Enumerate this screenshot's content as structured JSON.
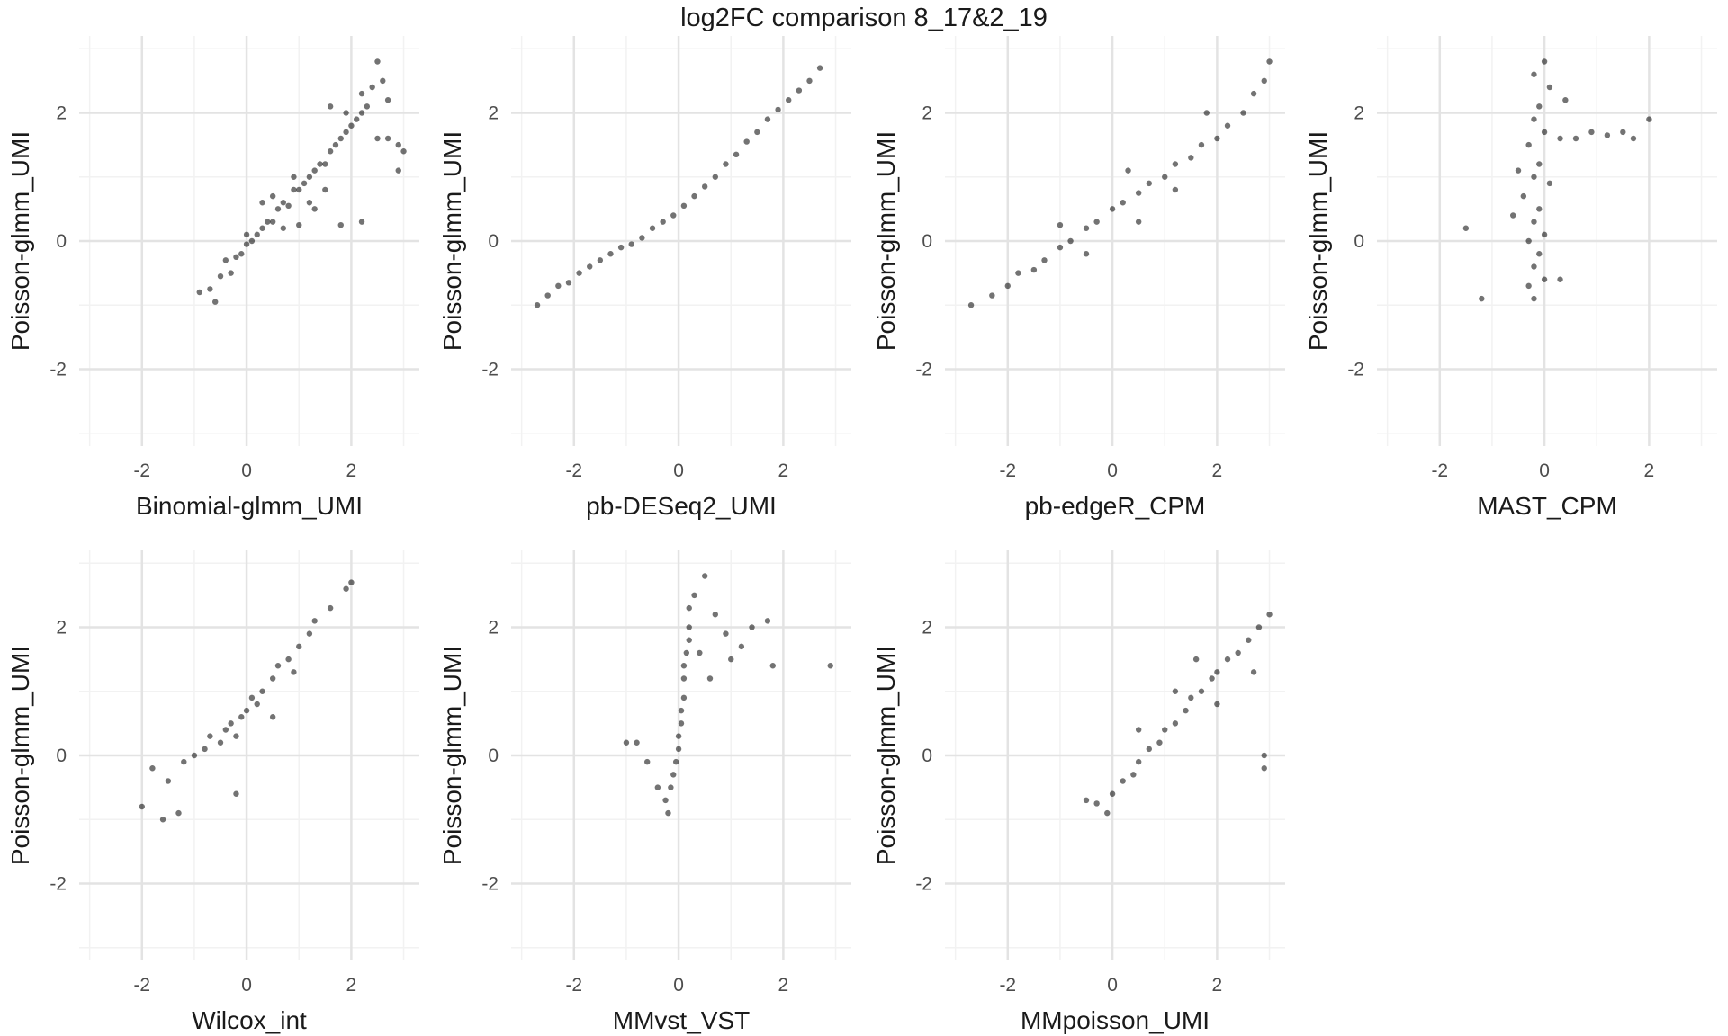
{
  "figure": {
    "title": "log2FC comparison 8_17&2_19"
  },
  "style": {
    "point_color": "#000000",
    "grid_major": "#e3e3e3",
    "grid_minor": "#f2f2f2",
    "background": "#ffffff"
  },
  "chart_data": [
    {
      "type": "scatter",
      "xlabel": "Binomial-glmm_UMI",
      "ylabel": "Poisson-glmm_UMI",
      "xlim": [
        -3.2,
        3.3
      ],
      "ylim": [
        -3.2,
        3.2
      ],
      "xticks": [
        -2,
        0,
        2
      ],
      "yticks": [
        -2,
        0,
        2
      ],
      "grid": true,
      "description": "strong positive correlation, slope ~0.8, tail flattening near y=1.5 for x>2.3",
      "points": [
        [
          -0.9,
          -0.8
        ],
        [
          -0.7,
          -0.75
        ],
        [
          -0.6,
          -0.95
        ],
        [
          -0.5,
          -0.55
        ],
        [
          -0.4,
          -0.3
        ],
        [
          -0.3,
          -0.5
        ],
        [
          -0.2,
          -0.25
        ],
        [
          -0.1,
          -0.2
        ],
        [
          0,
          -0.05
        ],
        [
          0,
          0.1
        ],
        [
          0.1,
          0
        ],
        [
          0.2,
          0.1
        ],
        [
          0.3,
          0.2
        ],
        [
          0.4,
          0.3
        ],
        [
          0.5,
          0.3
        ],
        [
          0.6,
          0.5
        ],
        [
          0.7,
          0.6
        ],
        [
          0.8,
          0.55
        ],
        [
          0.9,
          0.8
        ],
        [
          1,
          0.8
        ],
        [
          1.1,
          0.9
        ],
        [
          1.2,
          1.0
        ],
        [
          1.3,
          1.1
        ],
        [
          1.4,
          1.2
        ],
        [
          1.5,
          1.2
        ],
        [
          1.6,
          1.4
        ],
        [
          1.7,
          1.5
        ],
        [
          1.8,
          1.6
        ],
        [
          1.9,
          1.7
        ],
        [
          2.0,
          1.8
        ],
        [
          2.1,
          1.9
        ],
        [
          2.2,
          2.0
        ],
        [
          2.3,
          2.1
        ],
        [
          2.4,
          2.4
        ],
        [
          2.5,
          2.8
        ],
        [
          2.6,
          2.5
        ],
        [
          2.7,
          2.2
        ],
        [
          2.5,
          1.6
        ],
        [
          2.7,
          1.6
        ],
        [
          2.9,
          1.5
        ],
        [
          3.0,
          1.4
        ],
        [
          2.9,
          1.1
        ],
        [
          2.2,
          0.3
        ],
        [
          1.8,
          0.25
        ],
        [
          1.3,
          0.5
        ],
        [
          1.0,
          0.25
        ],
        [
          0.9,
          1.0
        ],
        [
          0.5,
          0.7
        ],
        [
          0.3,
          0.6
        ],
        [
          1.6,
          2.1
        ],
        [
          1.9,
          2.0
        ],
        [
          2.2,
          2.3
        ],
        [
          0.7,
          0.2
        ],
        [
          1.5,
          0.8
        ],
        [
          1.2,
          0.6
        ]
      ]
    },
    {
      "type": "scatter",
      "xlabel": "pb-DESeq2_UMI",
      "ylabel": "Poisson-glmm_UMI",
      "xlim": [
        -3.2,
        3.3
      ],
      "ylim": [
        -3.2,
        3.2
      ],
      "xticks": [
        -2,
        0,
        2
      ],
      "yticks": [
        -2,
        0,
        2
      ],
      "grid": true,
      "description": "nearly perfect linear relation, slope ~0.85",
      "points": [
        [
          -2.7,
          -1.0
        ],
        [
          -2.5,
          -0.85
        ],
        [
          -2.3,
          -0.7
        ],
        [
          -2.1,
          -0.65
        ],
        [
          -1.9,
          -0.5
        ],
        [
          -1.7,
          -0.4
        ],
        [
          -1.5,
          -0.3
        ],
        [
          -1.3,
          -0.2
        ],
        [
          -1.1,
          -0.1
        ],
        [
          -0.9,
          -0.05
        ],
        [
          -0.7,
          0.05
        ],
        [
          -0.5,
          0.2
        ],
        [
          -0.3,
          0.3
        ],
        [
          -0.1,
          0.4
        ],
        [
          0.1,
          0.55
        ],
        [
          0.3,
          0.7
        ],
        [
          0.5,
          0.85
        ],
        [
          0.7,
          1.0
        ],
        [
          0.9,
          1.2
        ],
        [
          1.1,
          1.35
        ],
        [
          1.3,
          1.55
        ],
        [
          1.5,
          1.7
        ],
        [
          1.7,
          1.9
        ],
        [
          1.9,
          2.05
        ],
        [
          2.1,
          2.2
        ],
        [
          2.3,
          2.35
        ],
        [
          2.5,
          2.5
        ],
        [
          2.7,
          2.7
        ]
      ]
    },
    {
      "type": "scatter",
      "xlabel": "pb-edgeR_CPM",
      "ylabel": "Poisson-glmm_UMI",
      "xlim": [
        -3.2,
        3.3
      ],
      "ylim": [
        -3.2,
        3.2
      ],
      "xticks": [
        -2,
        0,
        2
      ],
      "yticks": [
        -2,
        0,
        2
      ],
      "grid": true,
      "description": "strong linear relation, slope ~0.6, moderate spread",
      "points": [
        [
          -2.7,
          -1.0
        ],
        [
          -2.3,
          -0.85
        ],
        [
          -2.0,
          -0.7
        ],
        [
          -1.8,
          -0.5
        ],
        [
          -1.5,
          -0.45
        ],
        [
          -1.3,
          -0.3
        ],
        [
          -1.0,
          -0.1
        ],
        [
          -0.8,
          0.0
        ],
        [
          -0.5,
          0.2
        ],
        [
          -0.3,
          0.3
        ],
        [
          0,
          0.5
        ],
        [
          0.2,
          0.6
        ],
        [
          0.5,
          0.75
        ],
        [
          0.7,
          0.9
        ],
        [
          1.0,
          1.0
        ],
        [
          1.2,
          1.2
        ],
        [
          1.5,
          1.3
        ],
        [
          1.7,
          1.5
        ],
        [
          2.0,
          1.6
        ],
        [
          2.2,
          1.8
        ],
        [
          2.5,
          2.0
        ],
        [
          2.7,
          2.3
        ],
        [
          2.9,
          2.5
        ],
        [
          3.0,
          2.8
        ],
        [
          -1.0,
          0.25
        ],
        [
          0.5,
          0.3
        ],
        [
          1.2,
          0.8
        ],
        [
          0.3,
          1.1
        ],
        [
          1.8,
          2.0
        ],
        [
          -0.5,
          -0.2
        ]
      ]
    },
    {
      "type": "scatter",
      "xlabel": "MAST_CPM",
      "ylabel": "Poisson-glmm_UMI",
      "xlim": [
        -3.2,
        3.3
      ],
      "ylim": [
        -3.2,
        3.2
      ],
      "xticks": [
        -2,
        0,
        2
      ],
      "yticks": [
        -2,
        0,
        2
      ],
      "grid": true,
      "description": "vertical cloud centered at x~-0.1 spanning y -0.9 to 2.8, horizontal tail to x~2 at y~1.7",
      "points": [
        [
          -0.2,
          -0.9
        ],
        [
          -0.3,
          -0.7
        ],
        [
          0,
          -0.6
        ],
        [
          -0.2,
          -0.4
        ],
        [
          -0.1,
          -0.2
        ],
        [
          -0.3,
          0
        ],
        [
          0,
          0.1
        ],
        [
          -0.2,
          0.3
        ],
        [
          -0.1,
          0.5
        ],
        [
          -0.4,
          0.7
        ],
        [
          0.1,
          0.9
        ],
        [
          -0.2,
          1.0
        ],
        [
          -0.1,
          1.2
        ],
        [
          -0.3,
          1.5
        ],
        [
          0,
          1.7
        ],
        [
          -0.2,
          1.9
        ],
        [
          -0.1,
          2.1
        ],
        [
          0.1,
          2.4
        ],
        [
          -0.2,
          2.6
        ],
        [
          0,
          2.8
        ],
        [
          0.3,
          1.6
        ],
        [
          0.6,
          1.6
        ],
        [
          0.9,
          1.7
        ],
        [
          1.2,
          1.65
        ],
        [
          1.5,
          1.7
        ],
        [
          1.7,
          1.6
        ],
        [
          2.0,
          1.9
        ],
        [
          0.4,
          2.2
        ],
        [
          -1.5,
          0.2
        ],
        [
          -1.2,
          -0.9
        ],
        [
          -0.6,
          0.4
        ],
        [
          0.3,
          -0.6
        ],
        [
          -0.5,
          1.1
        ]
      ]
    },
    {
      "type": "scatter",
      "xlabel": "Wilcox_int",
      "ylabel": "Poisson-glmm_UMI",
      "xlim": [
        -3.2,
        3.3
      ],
      "ylim": [
        -3.2,
        3.2
      ],
      "xticks": [
        -2,
        0,
        2
      ],
      "yticks": [
        -2,
        0,
        2
      ],
      "grid": true,
      "description": "positive correlation, slope ~0.9",
      "points": [
        [
          -2.0,
          -0.8
        ],
        [
          -1.8,
          -0.2
        ],
        [
          -1.6,
          -1.0
        ],
        [
          -1.5,
          -0.4
        ],
        [
          -1.3,
          -0.9
        ],
        [
          -1.2,
          -0.1
        ],
        [
          -1.0,
          0.0
        ],
        [
          -0.8,
          0.1
        ],
        [
          -0.7,
          0.3
        ],
        [
          -0.5,
          0.2
        ],
        [
          -0.4,
          0.4
        ],
        [
          -0.3,
          0.5
        ],
        [
          -0.2,
          0.3
        ],
        [
          -0.1,
          0.6
        ],
        [
          0,
          0.7
        ],
        [
          0.1,
          0.9
        ],
        [
          0.2,
          0.8
        ],
        [
          0.3,
          1.0
        ],
        [
          0.5,
          1.2
        ],
        [
          0.6,
          1.4
        ],
        [
          0.8,
          1.5
        ],
        [
          0.9,
          1.3
        ],
        [
          1.0,
          1.7
        ],
        [
          1.2,
          1.9
        ],
        [
          1.3,
          2.1
        ],
        [
          1.6,
          2.3
        ],
        [
          1.9,
          2.6
        ],
        [
          2.0,
          2.7
        ],
        [
          -0.2,
          -0.6
        ],
        [
          0.5,
          0.6
        ]
      ]
    },
    {
      "type": "scatter",
      "xlabel": "MMvst_VST",
      "ylabel": "Poisson-glmm_UMI",
      "xlim": [
        -3.2,
        3.3
      ],
      "ylim": [
        -3.2,
        3.2
      ],
      "xticks": [
        -2,
        0,
        2
      ],
      "yticks": [
        -2,
        0,
        2
      ],
      "grid": true,
      "description": "steep near-vertical band around x~0 from y -0.9 to 2.5, scattered tail to right",
      "points": [
        [
          -0.2,
          -0.9
        ],
        [
          -0.25,
          -0.7
        ],
        [
          -0.15,
          -0.5
        ],
        [
          -0.1,
          -0.3
        ],
        [
          -0.05,
          -0.1
        ],
        [
          0,
          0.1
        ],
        [
          0,
          0.3
        ],
        [
          0.05,
          0.5
        ],
        [
          0.05,
          0.7
        ],
        [
          0.1,
          0.9
        ],
        [
          0.1,
          1.2
        ],
        [
          0.1,
          1.4
        ],
        [
          0.15,
          1.6
        ],
        [
          0.2,
          1.8
        ],
        [
          0.2,
          2.0
        ],
        [
          0.2,
          2.3
        ],
        [
          0.3,
          2.5
        ],
        [
          0.5,
          2.8
        ],
        [
          0.7,
          2.2
        ],
        [
          0.9,
          1.9
        ],
        [
          1.2,
          1.7
        ],
        [
          1.4,
          2.0
        ],
        [
          1.7,
          2.1
        ],
        [
          1.8,
          1.4
        ],
        [
          2.9,
          1.4
        ],
        [
          0.6,
          1.2
        ],
        [
          -0.8,
          0.2
        ],
        [
          -1.0,
          0.2
        ],
        [
          -0.6,
          -0.1
        ],
        [
          -0.4,
          -0.5
        ],
        [
          1.0,
          1.5
        ],
        [
          0.4,
          1.6
        ]
      ]
    },
    {
      "type": "scatter",
      "xlabel": "MMpoisson_UMI",
      "ylabel": "Poisson-glmm_UMI",
      "xlim": [
        -3.2,
        3.3
      ],
      "ylim": [
        -3.2,
        3.2
      ],
      "xticks": [
        -2,
        0,
        2
      ],
      "yticks": [
        -2,
        0,
        2
      ],
      "grid": true,
      "description": "strong linear relation, slope ~0.9, x from -0.5 to 3",
      "points": [
        [
          -0.5,
          -0.7
        ],
        [
          -0.3,
          -0.75
        ],
        [
          -0.1,
          -0.9
        ],
        [
          0,
          -0.6
        ],
        [
          0.2,
          -0.4
        ],
        [
          0.4,
          -0.3
        ],
        [
          0.5,
          -0.1
        ],
        [
          0.7,
          0.1
        ],
        [
          0.9,
          0.2
        ],
        [
          1.0,
          0.4
        ],
        [
          1.2,
          0.5
        ],
        [
          1.4,
          0.7
        ],
        [
          1.5,
          0.9
        ],
        [
          1.7,
          1.0
        ],
        [
          1.9,
          1.2
        ],
        [
          2.0,
          1.3
        ],
        [
          2.2,
          1.5
        ],
        [
          2.4,
          1.6
        ],
        [
          2.6,
          1.8
        ],
        [
          2.8,
          2.0
        ],
        [
          3.0,
          2.2
        ],
        [
          2.9,
          0
        ],
        [
          2.9,
          -0.2
        ],
        [
          1.2,
          1.0
        ],
        [
          0.5,
          0.4
        ],
        [
          2.0,
          0.8
        ],
        [
          1.6,
          1.5
        ],
        [
          2.7,
          1.3
        ]
      ]
    }
  ]
}
